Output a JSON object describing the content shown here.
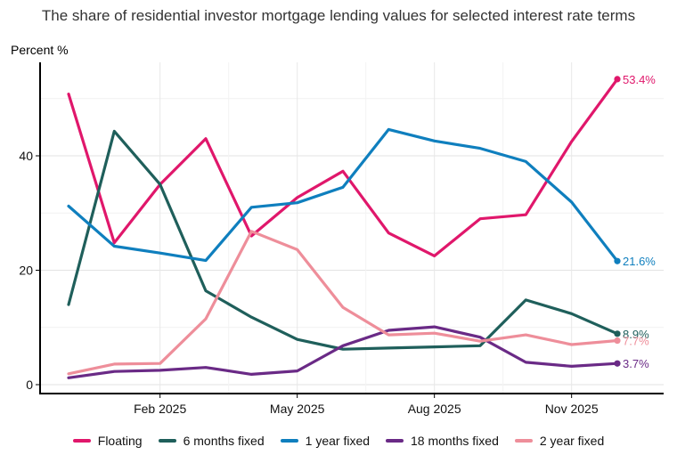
{
  "chart_data": {
    "type": "line",
    "title": "The share of residential investor mortgage lending values for selected interest rate terms",
    "ylabel": "Percent %",
    "xlabel": "",
    "ylim": [
      0,
      57
    ],
    "yticks": [
      0,
      20,
      40
    ],
    "x_dates": [
      "2024-12",
      "2025-01",
      "2025-02",
      "2025-03",
      "2025-04",
      "2025-05",
      "2025-06",
      "2025-07",
      "2025-08",
      "2025-09",
      "2025-10",
      "2025-11",
      "2025-12"
    ],
    "x_tick_labels": [
      {
        "x": "2025-02",
        "label": "Feb 2025"
      },
      {
        "x": "2025-05",
        "label": "May 2025"
      },
      {
        "x": "2025-08",
        "label": "Aug 2025"
      },
      {
        "x": "2025-11",
        "label": "Nov 2025"
      }
    ],
    "grid": true,
    "legend": "bottom",
    "series": [
      {
        "name": "Floating",
        "color": "#e0176b",
        "values": [
          50.8,
          24.8,
          35.0,
          43.0,
          26.0,
          32.7,
          37.3,
          26.5,
          22.5,
          29.0,
          29.7,
          42.5,
          53.4
        ],
        "end_label": "53.4%"
      },
      {
        "name": "6 months fixed",
        "color": "#1f5f5b",
        "values": [
          14.0,
          44.3,
          35.0,
          16.4,
          11.8,
          7.9,
          6.2,
          6.4,
          6.6,
          6.8,
          14.8,
          12.4,
          8.9
        ],
        "end_label": "8.9%"
      },
      {
        "name": "1 year fixed",
        "color": "#0f7fbe",
        "values": [
          31.2,
          24.2,
          23.0,
          21.7,
          31.0,
          31.8,
          34.5,
          44.6,
          42.6,
          41.3,
          39.0,
          31.9,
          21.6
        ],
        "end_label": "21.6%"
      },
      {
        "name": "18 months fixed",
        "color": "#6a2a86",
        "values": [
          1.2,
          2.3,
          2.5,
          3.0,
          1.8,
          2.4,
          6.8,
          9.5,
          10.1,
          8.3,
          3.9,
          3.2,
          3.7
        ],
        "end_label": "3.7%"
      },
      {
        "name": "2 year fixed",
        "color": "#ee8e9a",
        "values": [
          1.9,
          3.6,
          3.7,
          11.5,
          26.8,
          23.6,
          13.5,
          8.7,
          9.0,
          7.6,
          8.7,
          7.0,
          7.7
        ],
        "end_label": "7.7%"
      }
    ]
  }
}
